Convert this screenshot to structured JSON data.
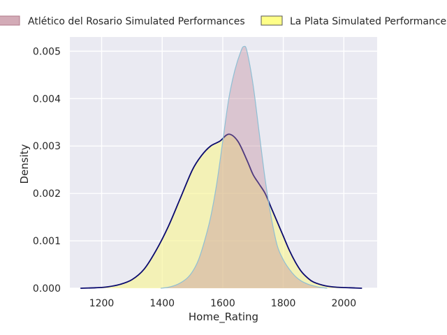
{
  "chart_data": {
    "type": "area",
    "title": "",
    "xlabel": "Home_Rating",
    "ylabel": "Density",
    "xlim": [
      1095,
      2110
    ],
    "ylim": [
      0,
      0.0053
    ],
    "x_ticks": [
      1200,
      1400,
      1600,
      1800,
      2000
    ],
    "x_tick_labels": [
      "1200",
      "1400",
      "1600",
      "1800",
      "2000"
    ],
    "y_ticks": [
      0,
      0.001,
      0.002,
      0.003,
      0.004,
      0.005
    ],
    "y_tick_labels": [
      "0.000",
      "0.001",
      "0.002",
      "0.003",
      "0.004",
      "0.005"
    ],
    "grid": true,
    "legend_position": "top",
    "series": [
      {
        "name": "Atlético del Rosario Simulated Performances",
        "fill_color": "#c08898",
        "fill_opacity": 0.38,
        "line_color": "#8fbfd4",
        "x": [
          1395,
          1420,
          1450,
          1480,
          1500,
          1520,
          1540,
          1560,
          1580,
          1600,
          1620,
          1640,
          1660,
          1670,
          1680,
          1700,
          1720,
          1740,
          1760,
          1780,
          1800,
          1820,
          1840,
          1860,
          1880,
          1900,
          1920,
          1945
        ],
        "y": [
          0,
          2e-05,
          8e-05,
          0.0002,
          0.00035,
          0.0006,
          0.001,
          0.0015,
          0.0022,
          0.0031,
          0.004,
          0.0046,
          0.005,
          0.0051,
          0.005,
          0.0043,
          0.0033,
          0.0023,
          0.0015,
          0.0009,
          0.0006,
          0.0004,
          0.00025,
          0.00015,
          9e-05,
          5e-05,
          2e-05,
          0
        ]
      },
      {
        "name": "La Plata Simulated Performances",
        "fill_color": "#f7f59a",
        "fill_opacity": 0.68,
        "line_color": "#0a0a6e",
        "x": [
          1130,
          1180,
          1220,
          1260,
          1300,
          1340,
          1380,
          1420,
          1460,
          1500,
          1530,
          1560,
          1590,
          1620,
          1650,
          1680,
          1700,
          1720,
          1740,
          1760,
          1780,
          1800,
          1820,
          1840,
          1860,
          1880,
          1900,
          1940,
          1980,
          2020,
          2060
        ],
        "y": [
          0,
          1e-05,
          3e-05,
          8e-05,
          0.00018,
          0.0004,
          0.0008,
          0.0013,
          0.0019,
          0.0025,
          0.0028,
          0.003,
          0.0031,
          0.00325,
          0.0031,
          0.0027,
          0.0024,
          0.0022,
          0.002,
          0.0017,
          0.0014,
          0.0011,
          0.0008,
          0.00055,
          0.00035,
          0.00022,
          0.00013,
          5e-05,
          2e-05,
          1e-05,
          0
        ]
      }
    ]
  }
}
